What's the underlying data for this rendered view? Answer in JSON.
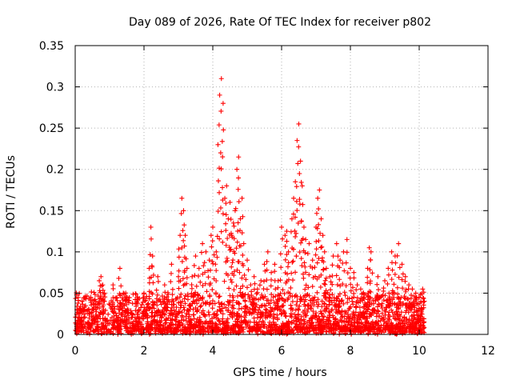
{
  "chart_data": {
    "type": "scatter",
    "title": "Day 089 of 2026, Rate Of TEC Index for receiver p802",
    "xlabel": "GPS time / hours",
    "ylabel": "ROTI / TECUs",
    "xlim": [
      0,
      12
    ],
    "ylim": [
      0,
      0.35
    ],
    "x_ticks": [
      "0",
      "2",
      "4",
      "6",
      "8",
      "10",
      "12"
    ],
    "y_ticks": [
      "0",
      "0.05",
      "0.1",
      "0.15",
      "0.2",
      "0.25",
      "0.3",
      "0.35"
    ],
    "grid": true,
    "marker": "+",
    "series": [
      {
        "name": "ROTI",
        "color": "#ff0000",
        "x": [
          0.05,
          0.2,
          0.4,
          0.6,
          0.7,
          0.75,
          0.8,
          0.85,
          1.1,
          1.3,
          1.4,
          1.5,
          1.8,
          2.0,
          2.15,
          2.2,
          2.25,
          2.4,
          2.6,
          2.8,
          3.0,
          3.05,
          3.1,
          3.15,
          3.2,
          3.25,
          3.4,
          3.5,
          3.6,
          3.7,
          3.8,
          3.9,
          3.95,
          4.0,
          4.1,
          4.15,
          4.2,
          4.25,
          4.3,
          4.35,
          4.4,
          4.45,
          4.5,
          4.55,
          4.6,
          4.65,
          4.7,
          4.75,
          4.8,
          4.85,
          4.9,
          5.0,
          5.1,
          5.2,
          5.3,
          5.4,
          5.5,
          5.6,
          5.7,
          5.8,
          5.9,
          6.0,
          6.1,
          6.15,
          6.2,
          6.3,
          6.35,
          6.4,
          6.45,
          6.5,
          6.55,
          6.6,
          6.65,
          6.7,
          6.8,
          6.9,
          7.0,
          7.05,
          7.1,
          7.15,
          7.2,
          7.25,
          7.3,
          7.4,
          7.5,
          7.6,
          7.7,
          7.8,
          7.9,
          8.0,
          8.1,
          8.2,
          8.3,
          8.4,
          8.5,
          8.55,
          8.6,
          8.8,
          9.0,
          9.1,
          9.2,
          9.3,
          9.4,
          9.5,
          9.6,
          9.7,
          9.8,
          9.9,
          10.0,
          10.05,
          10.1
        ],
        "y": [
          0.03,
          0.04,
          0.03,
          0.04,
          0.065,
          0.07,
          0.06,
          0.05,
          0.06,
          0.08,
          0.05,
          0.04,
          0.045,
          0.05,
          0.08,
          0.13,
          0.095,
          0.07,
          0.06,
          0.085,
          0.07,
          0.12,
          0.165,
          0.15,
          0.12,
          0.08,
          0.07,
          0.095,
          0.08,
          0.11,
          0.1,
          0.09,
          0.12,
          0.13,
          0.1,
          0.23,
          0.29,
          0.31,
          0.28,
          0.165,
          0.18,
          0.14,
          0.16,
          0.12,
          0.135,
          0.15,
          0.2,
          0.215,
          0.14,
          0.165,
          0.11,
          0.09,
          0.06,
          0.07,
          0.055,
          0.065,
          0.085,
          0.1,
          0.075,
          0.085,
          0.065,
          0.13,
          0.12,
          0.125,
          0.1,
          0.14,
          0.165,
          0.185,
          0.235,
          0.255,
          0.21,
          0.18,
          0.13,
          0.115,
          0.11,
          0.09,
          0.13,
          0.165,
          0.175,
          0.14,
          0.12,
          0.1,
          0.08,
          0.07,
          0.095,
          0.11,
          0.09,
          0.1,
          0.115,
          0.08,
          0.075,
          0.06,
          0.055,
          0.045,
          0.08,
          0.105,
          0.1,
          0.07,
          0.065,
          0.08,
          0.1,
          0.095,
          0.11,
          0.085,
          0.07,
          0.06,
          0.055,
          0.05,
          0.045,
          0.04,
          0.055
        ]
      }
    ],
    "dense_band": {
      "x_start": 0,
      "x_end": 10.15,
      "y_min": 0,
      "y_max": 0.045,
      "count": 2200
    }
  }
}
